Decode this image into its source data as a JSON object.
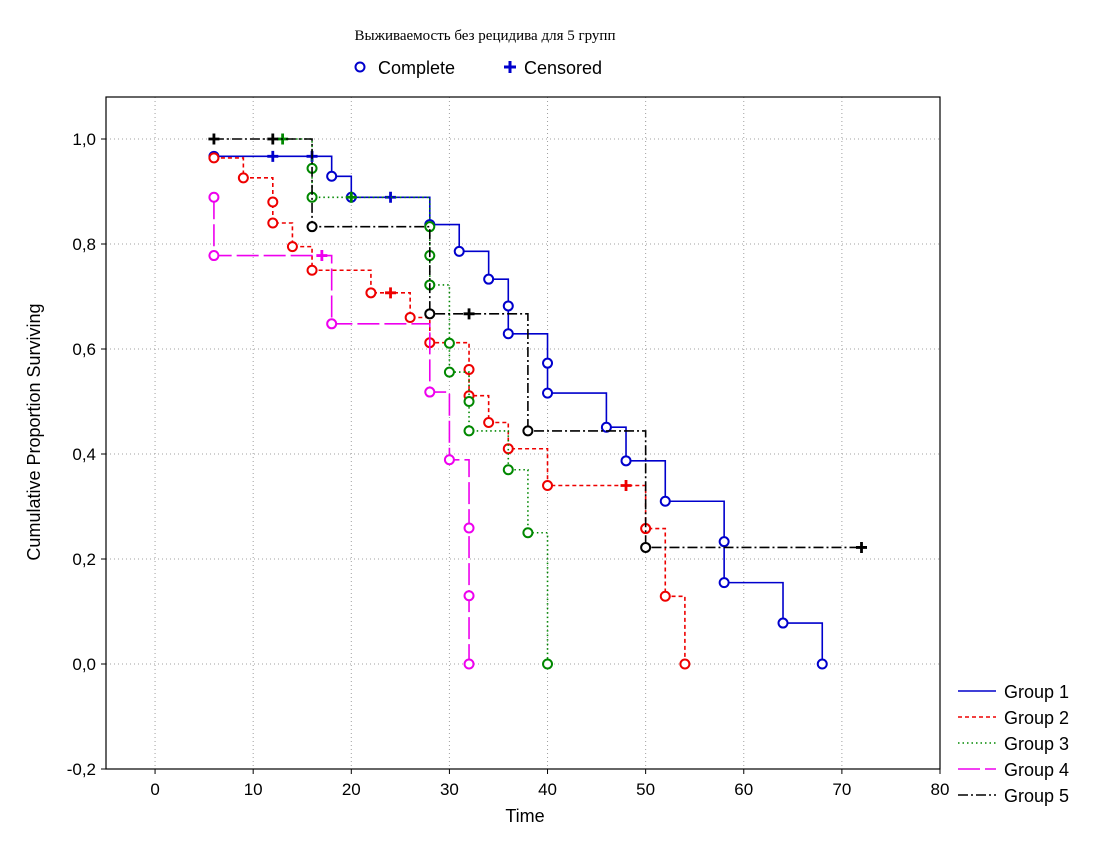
{
  "chart_data": {
    "type": "line",
    "title": "Выживаемость без рецидива для 5 групп",
    "marker_legend": {
      "complete_label": "Complete",
      "censored_label": "Censored"
    },
    "xlabel": "Time",
    "ylabel": "Cumulative Proportion Surviving",
    "xlim": [
      -5,
      80
    ],
    "ylim": [
      -0.2,
      1.08
    ],
    "xticks": [
      0,
      10,
      20,
      30,
      40,
      50,
      60,
      70,
      80
    ],
    "xtick_labels": [
      "0",
      "10",
      "20",
      "30",
      "40",
      "50",
      "60",
      "70",
      "80"
    ],
    "yticks": [
      -0.2,
      0.0,
      0.2,
      0.4,
      0.6,
      0.8,
      1.0
    ],
    "ytick_labels": [
      "-0,2",
      "0,0",
      "0,2",
      "0,4",
      "0,6",
      "0,8",
      "1,0"
    ],
    "grid": true,
    "legend_position": "bottom-right",
    "series": [
      {
        "name": "Group  1",
        "color": "#0000cc",
        "dash": "none",
        "steps": [
          [
            6,
            0.967
          ],
          [
            18,
            0.929
          ],
          [
            20,
            0.889
          ],
          [
            28,
            0.837
          ],
          [
            31,
            0.786
          ],
          [
            34,
            0.733
          ],
          [
            36,
            0.682
          ],
          [
            36,
            0.629
          ],
          [
            40,
            0.573
          ],
          [
            40,
            0.516
          ],
          [
            46,
            0.451
          ],
          [
            48,
            0.387
          ],
          [
            52,
            0.31
          ],
          [
            58,
            0.233
          ],
          [
            58,
            0.155
          ],
          [
            64,
            0.078
          ],
          [
            68,
            0.0
          ]
        ],
        "censored": [
          [
            12,
            0.967
          ],
          [
            16,
            0.967
          ],
          [
            24,
            0.889
          ]
        ],
        "end_x": 68
      },
      {
        "name": "Group  2",
        "color": "#ee0000",
        "dash": "4,3",
        "steps": [
          [
            6,
            0.964
          ],
          [
            9,
            0.926
          ],
          [
            12,
            0.88
          ],
          [
            12,
            0.84
          ],
          [
            14,
            0.795
          ],
          [
            16,
            0.75
          ],
          [
            22,
            0.707
          ],
          [
            26,
            0.66
          ],
          [
            28,
            0.612
          ],
          [
            32,
            0.561
          ],
          [
            32,
            0.511
          ],
          [
            34,
            0.46
          ],
          [
            36,
            0.41
          ],
          [
            40,
            0.34
          ],
          [
            50,
            0.258
          ],
          [
            52,
            0.129
          ],
          [
            54,
            0.0
          ]
        ],
        "censored": [
          [
            24,
            0.707
          ],
          [
            48,
            0.34
          ]
        ],
        "end_x": 54
      },
      {
        "name": "Group  3",
        "color": "#008800",
        "dash": "1.5,3",
        "steps": [
          [
            16,
            0.944
          ],
          [
            16,
            0.889
          ],
          [
            28,
            0.833
          ],
          [
            28,
            0.778
          ],
          [
            28,
            0.722
          ],
          [
            30,
            0.611
          ],
          [
            30,
            0.556
          ],
          [
            32,
            0.5
          ],
          [
            32,
            0.444
          ],
          [
            36,
            0.37
          ],
          [
            38,
            0.25
          ],
          [
            40,
            0.0
          ]
        ],
        "censored": [
          [
            13,
            1.0
          ],
          [
            20,
            0.889
          ]
        ],
        "end_x": 40
      },
      {
        "name": "Group  4",
        "color": "#ee00ee",
        "dash": "22,5",
        "steps": [
          [
            6,
            0.889
          ],
          [
            6,
            0.778
          ],
          [
            18,
            0.648
          ],
          [
            28,
            0.518
          ],
          [
            30,
            0.389
          ],
          [
            32,
            0.259
          ],
          [
            32,
            0.13
          ],
          [
            32,
            0.0
          ]
        ],
        "censored": [
          [
            17,
            0.778
          ]
        ],
        "end_x": 32
      },
      {
        "name": "Group  5",
        "color": "#000000",
        "dash": "10,3,2,3",
        "steps": [
          [
            16,
            0.833
          ],
          [
            28,
            0.667
          ],
          [
            38,
            0.444
          ],
          [
            50,
            0.222
          ]
        ],
        "censored": [
          [
            6,
            1.0
          ],
          [
            12,
            1.0
          ],
          [
            32,
            0.667
          ],
          [
            72,
            0.222
          ]
        ],
        "end_x": 72
      }
    ]
  }
}
